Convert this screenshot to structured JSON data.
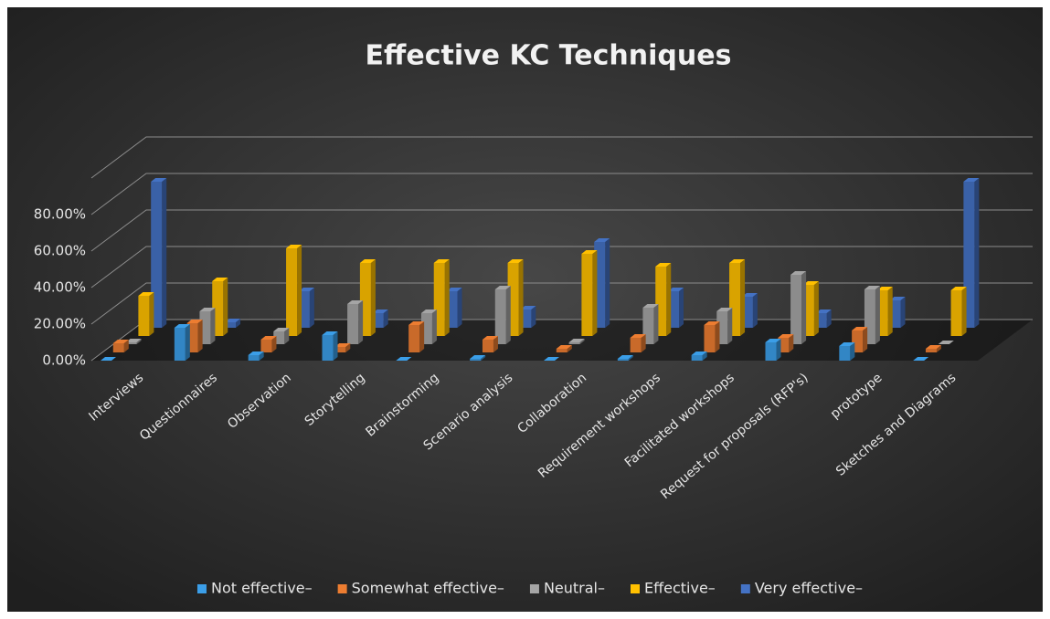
{
  "chart_data": {
    "type": "bar3d",
    "title": "Effective  KC Techniques",
    "categories": [
      "Interviews",
      "Questionnaires",
      "Observation",
      "Storytelling",
      "Brainstorming",
      "Scenario analysis",
      "Collaboration",
      "Requirement workshops",
      "Facilitated workshops",
      "Request for proposals (RFP's)",
      "prototype",
      "Sketches and Diagrams"
    ],
    "series": [
      {
        "name": "Not effective–",
        "color": "#3b9ee8",
        "values": [
          0,
          18,
          3,
          14,
          0,
          1,
          0,
          1,
          3,
          10,
          8,
          0
        ]
      },
      {
        "name": "Somewhat effective–",
        "color": "#ed7d31",
        "values": [
          5,
          16,
          7,
          3,
          15,
          7,
          2,
          8,
          15,
          8,
          12,
          2
        ]
      },
      {
        "name": "Neutral–",
        "color": "#a5a5a5",
        "values": [
          1,
          18,
          7,
          22,
          17,
          30,
          1,
          20,
          18,
          38,
          30,
          0
        ]
      },
      {
        "name": "Effective–",
        "color": "#ffc000",
        "values": [
          22,
          30,
          48,
          40,
          40,
          40,
          45,
          38,
          40,
          28,
          25,
          25
        ]
      },
      {
        "name": "Very effective–",
        "color": "#4472c4",
        "values": [
          80,
          3,
          20,
          8,
          20,
          10,
          47,
          20,
          17,
          8,
          15,
          80
        ]
      }
    ],
    "ylim": [
      0,
      100
    ],
    "yticks": [
      {
        "value": 0,
        "label": "0.00%"
      },
      {
        "value": 20,
        "label": "20.00%"
      },
      {
        "value": 40,
        "label": "40.00%"
      },
      {
        "value": 60,
        "label": "60.00%"
      },
      {
        "value": 80,
        "label": "80.00%"
      }
    ],
    "grid": true,
    "legend": "bottom"
  }
}
